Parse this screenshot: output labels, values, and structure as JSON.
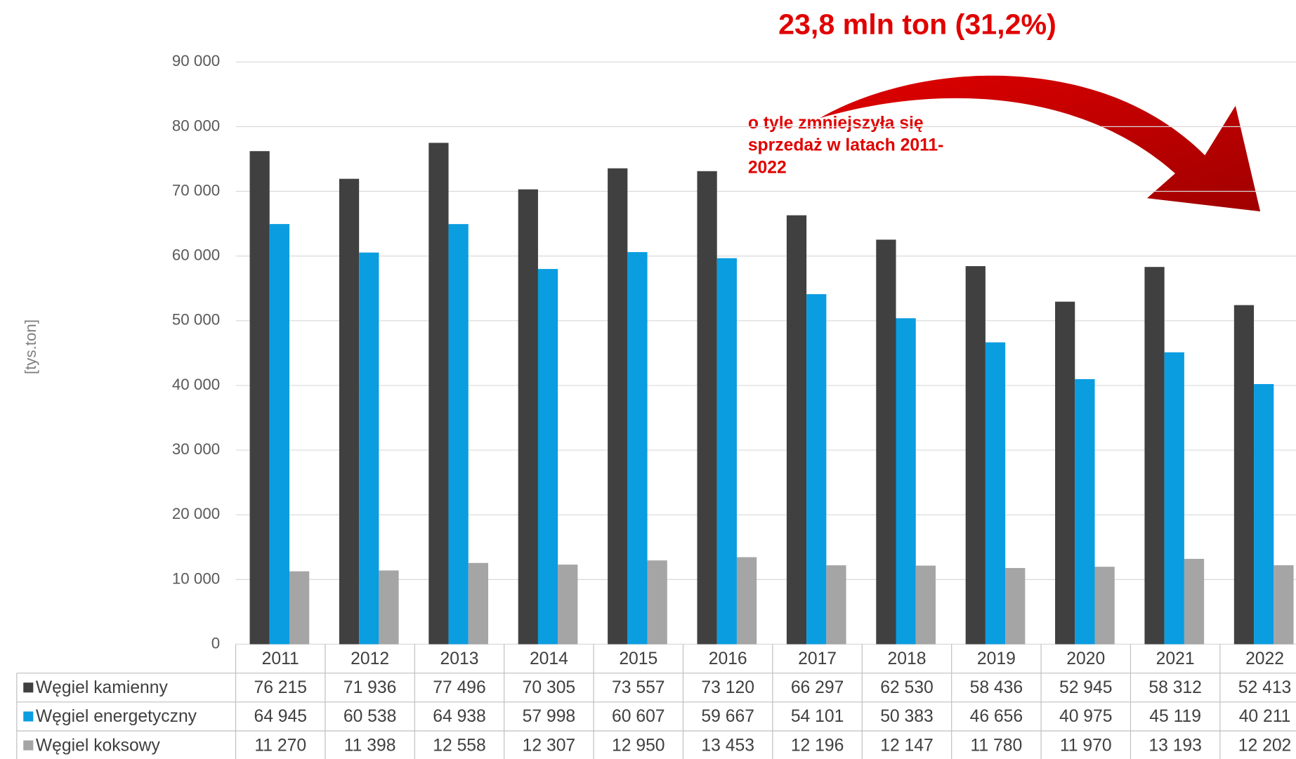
{
  "chart_data": {
    "type": "bar",
    "title": "23,8 mln ton (31,2%)",
    "annotation": [
      "o tyle zmniejszyła się",
      "sprzedaż w latach 2011-",
      "2022"
    ],
    "y_label": "[tys.ton]",
    "categories": [
      "2011",
      "2012",
      "2013",
      "2014",
      "2015",
      "2016",
      "2017",
      "2018",
      "2019",
      "2020",
      "2021",
      "2022"
    ],
    "series": [
      {
        "name": "Węgiel kamienny",
        "color": "#404040",
        "values": [
          76215,
          71936,
          77496,
          70305,
          73557,
          73120,
          66297,
          62530,
          58436,
          52945,
          58312,
          52413
        ],
        "value_labels": [
          "76 215",
          "71 936",
          "77 496",
          "70 305",
          "73 557",
          "73 120",
          "66 297",
          "62 530",
          "58 436",
          "52 945",
          "58 312",
          "52 413"
        ]
      },
      {
        "name": "Węgiel energetyczny",
        "color": "#0a9de0",
        "values": [
          64945,
          60538,
          64938,
          57998,
          60607,
          59667,
          54101,
          50383,
          46656,
          40975,
          45119,
          40211
        ],
        "value_labels": [
          "64 945",
          "60 538",
          "64 938",
          "57 998",
          "60 607",
          "59 667",
          "54 101",
          "50 383",
          "46 656",
          "40 975",
          "45 119",
          "40 211"
        ]
      },
      {
        "name": "Węgiel koksowy",
        "color": "#a5a5a5",
        "values": [
          11270,
          11398,
          12558,
          12307,
          12950,
          13453,
          12196,
          12147,
          11780,
          11970,
          13193,
          12202
        ],
        "value_labels": [
          "11 270",
          "11 398",
          "12 558",
          "12 307",
          "12 950",
          "13 453",
          "12 196",
          "12 147",
          "11 780",
          "11 970",
          "13 193",
          "12 202"
        ]
      }
    ],
    "ylim": [
      0,
      90000
    ],
    "yticks": [
      0,
      {
        "value": 10000,
        "label": "10 000"
      },
      {
        "value": 20000,
        "label": "20 000"
      },
      {
        "value": 30000,
        "label": "30 000"
      },
      {
        "value": 40000,
        "label": "40 000"
      },
      {
        "value": 50000,
        "label": "50 000"
      },
      {
        "value": 60000,
        "label": "60 000"
      },
      {
        "value": 70000,
        "label": "70 000"
      },
      {
        "value": 80000,
        "label": "80 000"
      },
      {
        "value": 90000,
        "label": "90 000"
      }
    ],
    "grid": true
  }
}
